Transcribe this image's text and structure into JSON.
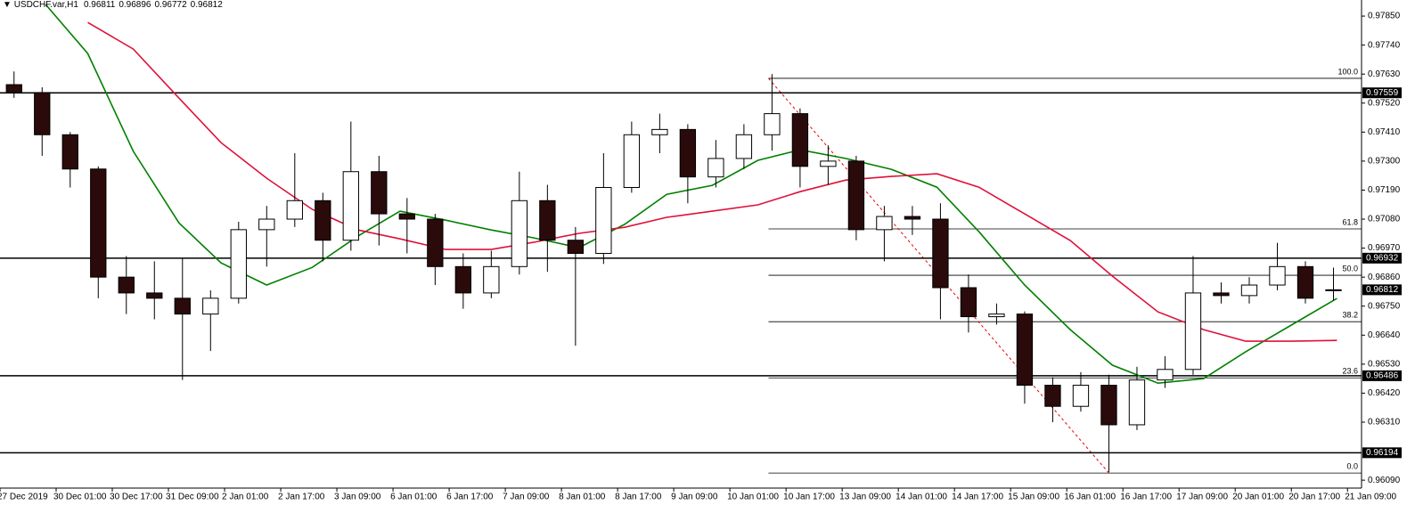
{
  "chart_data": {
    "type": "candlestick",
    "title": "USDCHF.var,H1",
    "xlim": [
      0,
      388
    ],
    "ylim": [
      0.9606,
      0.97911
    ],
    "xticks": [
      {
        "value": 0,
        "label": "27 Dec 2019"
      },
      {
        "value": 16,
        "label": "30 Dec 01:00"
      },
      {
        "value": 32,
        "label": "30 Dec 17:00"
      },
      {
        "value": 48,
        "label": "31 Dec 09:00"
      },
      {
        "value": 64,
        "label": "2 Jan 01:00"
      },
      {
        "value": 80,
        "label": "2 Jan 17:00"
      },
      {
        "value": 96,
        "label": "3 Jan 09:00"
      },
      {
        "value": 112,
        "label": "6 Jan 01:00"
      },
      {
        "value": 128,
        "label": "6 Jan 17:00"
      },
      {
        "value": 144,
        "label": "7 Jan 09:00"
      },
      {
        "value": 160,
        "label": "8 Jan 01:00"
      },
      {
        "value": 176,
        "label": "8 Jan 17:00"
      },
      {
        "value": 192,
        "label": "9 Jan 09:00"
      },
      {
        "value": 208,
        "label": "10 Jan 01:00"
      },
      {
        "value": 224,
        "label": "10 Jan 17:00"
      },
      {
        "value": 240,
        "label": "13 Jan 09:00"
      },
      {
        "value": 256,
        "label": "14 Jan 01:00"
      },
      {
        "value": 272,
        "label": "14 Jan 17:00"
      },
      {
        "value": 288,
        "label": "15 Jan 09:00"
      },
      {
        "value": 304,
        "label": "16 Jan 01:00"
      },
      {
        "value": 320,
        "label": "16 Jan 17:00"
      },
      {
        "value": 336,
        "label": "17 Jan 09:00"
      },
      {
        "value": 352,
        "label": "20 Jan 01:00"
      },
      {
        "value": 368,
        "label": "20 Jan 17:00"
      },
      {
        "value": 384,
        "label": "21 Jan 09:00"
      }
    ],
    "yticks": [
      {
        "value": 0.9785,
        "label": "0.97850"
      },
      {
        "value": 0.9774,
        "label": "0.97740"
      },
      {
        "value": 0.9763,
        "label": "0.97630"
      },
      {
        "value": 0.9752,
        "label": "0.97520"
      },
      {
        "value": 0.9741,
        "label": "0.97410"
      },
      {
        "value": 0.973,
        "label": "0.97300"
      },
      {
        "value": 0.9719,
        "label": "0.97190"
      },
      {
        "value": 0.9708,
        "label": "0.97080"
      },
      {
        "value": 0.9697,
        "label": "0.96970"
      },
      {
        "value": 0.9686,
        "label": "0.96860"
      },
      {
        "value": 0.9675,
        "label": "0.96750"
      },
      {
        "value": 0.9664,
        "label": "0.96640"
      },
      {
        "value": 0.9653,
        "label": "0.96530"
      },
      {
        "value": 0.9642,
        "label": "0.96420"
      },
      {
        "value": 0.9631,
        "label": "0.96310"
      },
      {
        "value": 0.9609,
        "label": "0.96090"
      }
    ],
    "x": [
      4,
      12,
      20,
      28,
      36,
      44,
      52,
      60,
      68,
      76,
      84,
      92,
      100,
      108,
      116,
      124,
      132,
      140,
      148,
      156,
      164,
      172,
      180,
      188,
      196,
      204,
      212,
      220,
      228,
      236,
      244,
      252,
      260,
      268,
      276,
      284,
      292,
      300,
      308,
      316,
      324,
      332,
      340,
      348,
      356,
      364,
      372,
      380
    ],
    "open": [
      0.9759,
      0.9756,
      0.974,
      0.9727,
      0.9686,
      0.968,
      0.9678,
      0.9672,
      0.9678,
      0.9704,
      0.9708,
      0.9715,
      0.97,
      0.9726,
      0.971,
      0.9708,
      0.969,
      0.968,
      0.969,
      0.9715,
      0.97,
      0.9695,
      0.972,
      0.974,
      0.9742,
      0.9724,
      0.9731,
      0.974,
      0.9748,
      0.9728,
      0.973,
      0.9704,
      0.9709,
      0.9708,
      0.9682,
      0.9671,
      0.9672,
      0.9645,
      0.9637,
      0.9645,
      0.963,
      0.9647,
      0.9651,
      0.968,
      0.9679,
      0.9683,
      0.969,
      0.96811
    ],
    "high": [
      0.9764,
      0.9758,
      0.9741,
      0.9728,
      0.9694,
      0.9692,
      0.9693,
      0.9681,
      0.9707,
      0.9713,
      0.9733,
      0.9718,
      0.9745,
      0.9732,
      0.9716,
      0.971,
      0.9695,
      0.9696,
      0.9726,
      0.9721,
      0.9705,
      0.9733,
      0.9745,
      0.9748,
      0.9744,
      0.9738,
      0.9744,
      0.9763,
      0.975,
      0.9736,
      0.9732,
      0.9713,
      0.9713,
      0.9714,
      0.9687,
      0.9676,
      0.9673,
      0.9648,
      0.965,
      0.9649,
      0.9652,
      0.9656,
      0.9694,
      0.9684,
      0.9686,
      0.9699,
      0.9692,
      0.96896
    ],
    "low": [
      0.9754,
      0.9732,
      0.972,
      0.9678,
      0.9672,
      0.967,
      0.9647,
      0.9658,
      0.9676,
      0.969,
      0.9705,
      0.9692,
      0.9696,
      0.9698,
      0.9695,
      0.9683,
      0.9674,
      0.9678,
      0.9687,
      0.9688,
      0.966,
      0.9691,
      0.9718,
      0.9733,
      0.9714,
      0.972,
      0.9727,
      0.9734,
      0.972,
      0.9721,
      0.97,
      0.9692,
      0.9702,
      0.967,
      0.9665,
      0.9668,
      0.9638,
      0.9631,
      0.9635,
      0.9612,
      0.9628,
      0.9644,
      0.9649,
      0.9676,
      0.9676,
      0.9681,
      0.9676,
      0.96772
    ],
    "close": [
      0.9756,
      0.974,
      0.9727,
      0.9686,
      0.968,
      0.9678,
      0.9672,
      0.9678,
      0.9704,
      0.9708,
      0.9715,
      0.97,
      0.9726,
      0.971,
      0.9708,
      0.969,
      0.968,
      0.969,
      0.9715,
      0.97,
      0.9695,
      0.972,
      0.974,
      0.9742,
      0.9724,
      0.9731,
      0.974,
      0.9748,
      0.9728,
      0.973,
      0.9704,
      0.9709,
      0.9708,
      0.9682,
      0.9671,
      0.9672,
      0.9645,
      0.9637,
      0.9645,
      0.963,
      0.9647,
      0.9651,
      0.968,
      0.9679,
      0.9683,
      0.969,
      0.9678,
      0.96812
    ],
    "series": [
      {
        "color": "#008000",
        "x": [
          13,
          25,
          38,
          51,
          63,
          76,
          89,
          102,
          114,
          127,
          140,
          152,
          165,
          178,
          190,
          203,
          216,
          228,
          241,
          254,
          267,
          279,
          292,
          305,
          317,
          330,
          343,
          355,
          368,
          381
        ],
        "values": [
          0.97894,
          0.97708,
          0.97337,
          0.97066,
          0.96914,
          0.9683,
          0.96897,
          0.97016,
          0.9711,
          0.97076,
          0.97039,
          0.97009,
          0.96972,
          0.9706,
          0.97174,
          0.97208,
          0.97303,
          0.97343,
          0.9731,
          0.97269,
          0.97201,
          0.97032,
          0.9683,
          0.96661,
          0.96526,
          0.96458,
          0.96475,
          0.96577,
          0.96678,
          0.96779
        ]
      },
      {
        "color": "#e0103a",
        "x": [
          13,
          25,
          38,
          51,
          63,
          76,
          89,
          102,
          114,
          127,
          140,
          152,
          165,
          178,
          190,
          203,
          216,
          228,
          241,
          254,
          267,
          279,
          292,
          305,
          317,
          330,
          343,
          355,
          368,
          381
        ],
        "values": [
          null,
          0.97826,
          0.97725,
          0.97539,
          0.9737,
          0.97235,
          0.97117,
          0.97039,
          0.97005,
          0.96965,
          0.96965,
          0.96992,
          0.97026,
          0.97049,
          0.97087,
          0.9711,
          0.97134,
          0.97184,
          0.97228,
          0.97242,
          0.97252,
          0.97201,
          0.971,
          0.96999,
          0.96864,
          0.96728,
          0.96661,
          0.96617,
          0.96617,
          0.9662
        ]
      }
    ],
    "hlines": [
      0.97559,
      0.96932,
      0.96486,
      0.96194
    ],
    "fibo": {
      "x": [
        219,
        316
      ],
      "levels": [
        {
          "ratio": {
            "value": 100,
            "label": "100.0"
          },
          "price": 0.97614
        },
        {
          "ratio": {
            "value": 61.8,
            "label": "61.8"
          },
          "price": 0.97043
        },
        {
          "ratio": {
            "value": 50,
            "label": "50.0"
          },
          "price": 0.96867
        },
        {
          "ratio": {
            "value": 38.2,
            "label": "38.2"
          },
          "price": 0.96691
        },
        {
          "ratio": {
            "value": 23.6,
            "label": "23.6"
          },
          "price": 0.96478
        },
        {
          "ratio": {
            "value": 0,
            "label": "0.0"
          },
          "price": 0.96117
        }
      ]
    }
  }
}
